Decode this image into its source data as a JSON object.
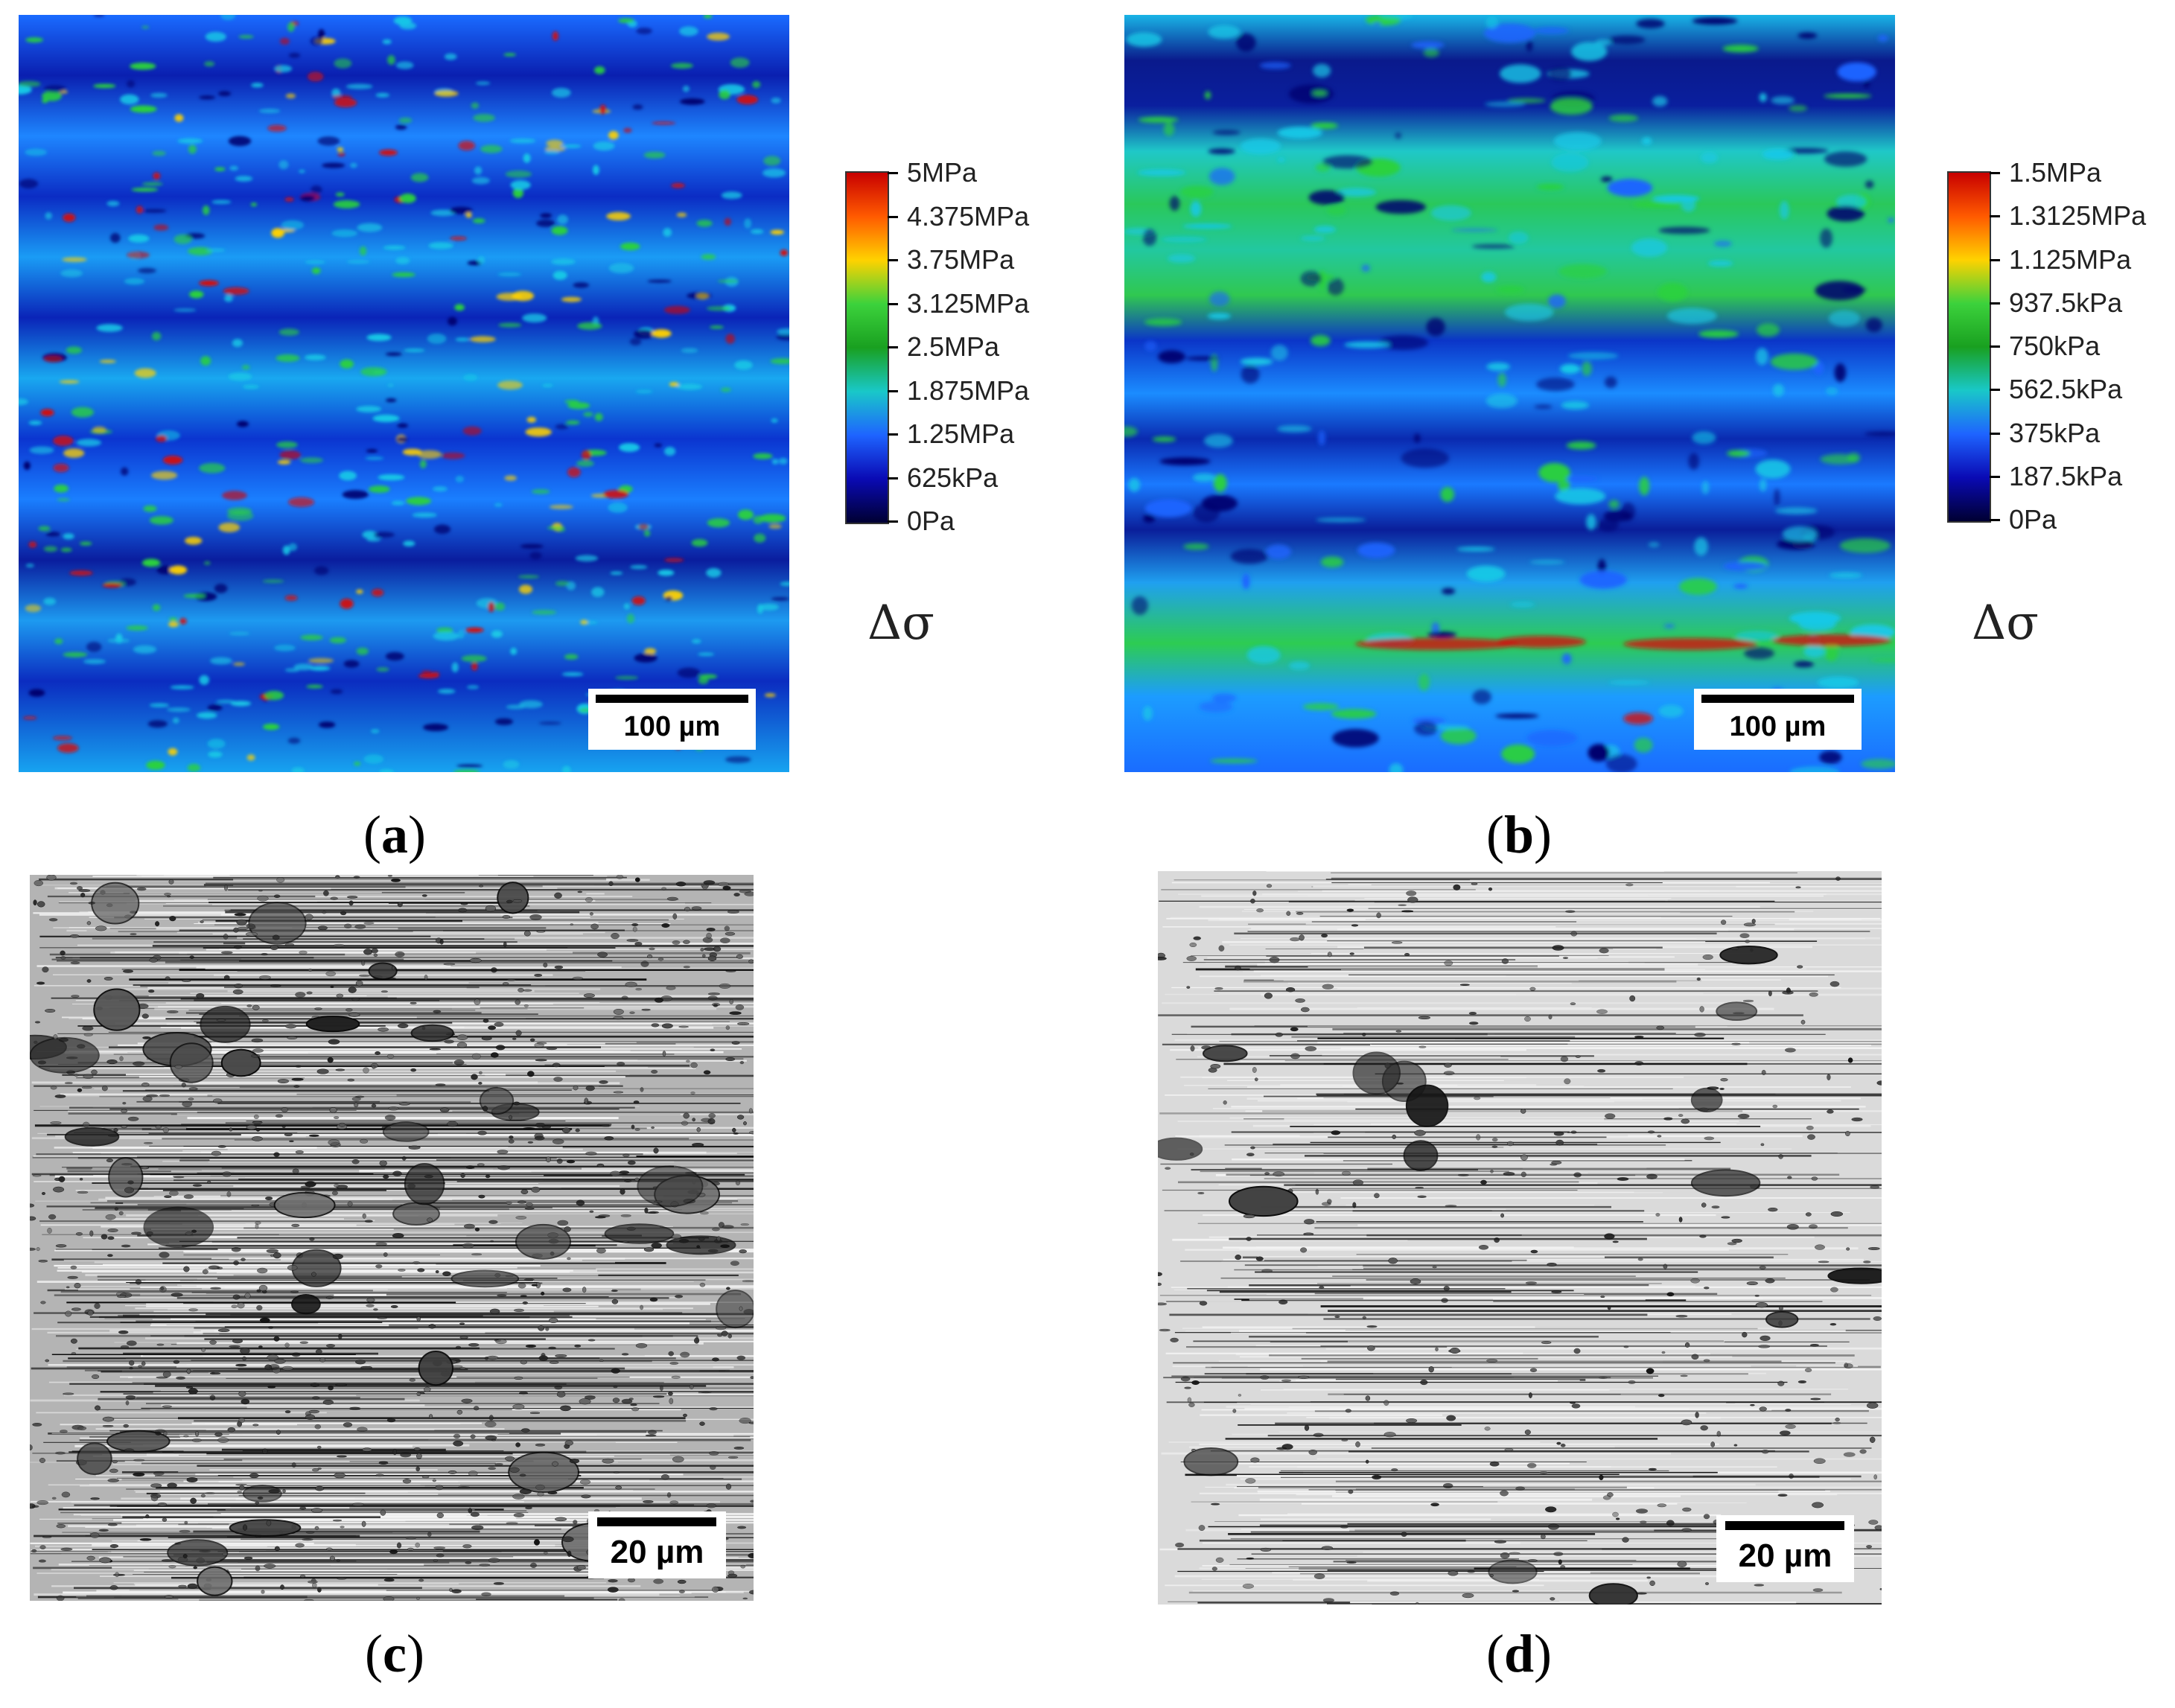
{
  "panels": [
    {
      "id": "a",
      "label": "a",
      "scale_label": "100 µm"
    },
    {
      "id": "b",
      "label": "b",
      "scale_label": "100 µm"
    },
    {
      "id": "c",
      "label": "c",
      "scale_label": "20 µm"
    },
    {
      "id": "d",
      "label": "d",
      "scale_label": "20 µm"
    }
  ],
  "colorbar_a": {
    "ticks": [
      "5MPa",
      "4.375MPa",
      "3.75MPa",
      "3.125MPa",
      "2.5MPa",
      "1.875MPa",
      "1.25MPa",
      "625kPa",
      "0Pa"
    ],
    "symbol": "Δσ"
  },
  "colorbar_b": {
    "ticks": [
      "1.5MPa",
      "1.3125MPa",
      "1.125MPa",
      "937.5kPa",
      "750kPa",
      "562.5kPa",
      "375kPa",
      "187.5kPa",
      "0Pa"
    ],
    "symbol": "Δσ"
  },
  "colors": {
    "map_low": "#06066e",
    "map_mid": "#1e64ff",
    "map_cyan": "#19c8e6",
    "map_green": "#2ad23c",
    "map_high": "#d20a0a"
  },
  "caption_format": "(label)"
}
